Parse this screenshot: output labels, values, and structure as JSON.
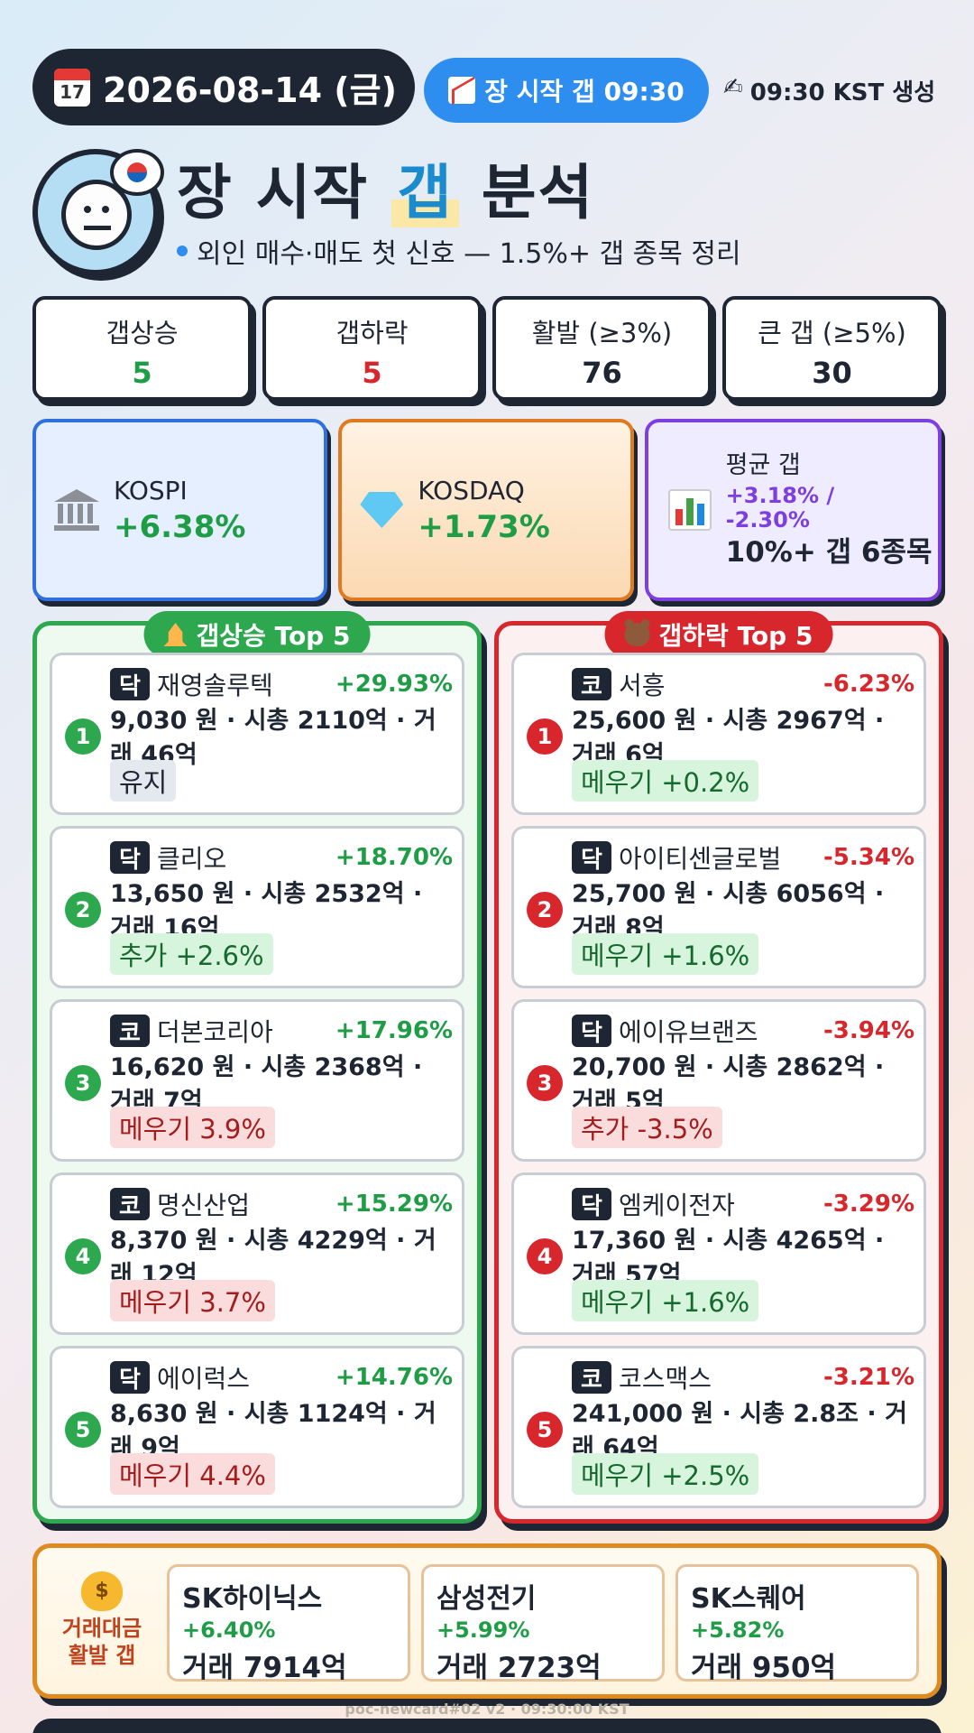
{
  "header": {
    "date": "2026-08-14 (금)",
    "calendar_icon_text": "17",
    "gap_pill": "장 시작 갭 09:30",
    "generated": "09:30 KST 생성"
  },
  "title": {
    "pre": "장 시작 ",
    "highlight": "갭",
    "post": " 분석",
    "subtitle": "외인 매수·매도 첫 신호 — 1.5%+ 갭 종목 정리"
  },
  "stats": [
    {
      "label": "갭상승",
      "value": "5",
      "color": "#1f9d46"
    },
    {
      "label": "갭하락",
      "value": "5",
      "color": "#d8262d"
    },
    {
      "label": "활발 (≥3%)",
      "value": "76",
      "color": "#1e2533"
    },
    {
      "label": "큰 갭 (≥5%)",
      "value": "30",
      "color": "#1e2533"
    }
  ],
  "indices": {
    "kospi": {
      "name": "KOSPI",
      "change": "+6.38%"
    },
    "kosdaq": {
      "name": "KOSDAQ",
      "change": "+1.73%"
    },
    "avg": {
      "name": "평균 갭",
      "change": "+3.18% / -2.30%",
      "note": "10%+ 갭 6종목"
    }
  },
  "gap_up": {
    "title": "갭상승 Top 5",
    "items": [
      {
        "rank": "1",
        "market": "닥",
        "name": "재영솔루텍",
        "change": "+29.93%",
        "info": "9,030 원 · 시총 2110억 · 거래 46억",
        "tag": "유지",
        "tag_type": "neutral"
      },
      {
        "rank": "2",
        "market": "닥",
        "name": "클리오",
        "change": "+18.70%",
        "info": "13,650 원 · 시총 2532억 · 거래 16억",
        "tag": "추가 +2.6%",
        "tag_type": "green"
      },
      {
        "rank": "3",
        "market": "코",
        "name": "더본코리아",
        "change": "+17.96%",
        "info": "16,620 원 · 시총 2368억 · 거래 7억",
        "tag": "메우기 3.9%",
        "tag_type": "red"
      },
      {
        "rank": "4",
        "market": "코",
        "name": "명신산업",
        "change": "+15.29%",
        "info": "8,370 원 · 시총 4229억 · 거래 12억",
        "tag": "메우기 3.7%",
        "tag_type": "red"
      },
      {
        "rank": "5",
        "market": "닥",
        "name": "에이럭스",
        "change": "+14.76%",
        "info": "8,630 원 · 시총 1124억 · 거래 9억",
        "tag": "메우기 4.4%",
        "tag_type": "red"
      }
    ]
  },
  "gap_down": {
    "title": "갭하락 Top 5",
    "items": [
      {
        "rank": "1",
        "market": "코",
        "name": "서흥",
        "change": "-6.23%",
        "info": "25,600 원 · 시총 2967억 · 거래 6억",
        "tag": "메우기 +0.2%",
        "tag_type": "green"
      },
      {
        "rank": "2",
        "market": "닥",
        "name": "아이티센글로벌",
        "change": "-5.34%",
        "info": "25,700 원 · 시총 6056억 · 거래 8억",
        "tag": "메우기 +1.6%",
        "tag_type": "green"
      },
      {
        "rank": "3",
        "market": "닥",
        "name": "에이유브랜즈",
        "change": "-3.94%",
        "info": "20,700 원 · 시총 2862억 · 거래 5억",
        "tag": "추가 -3.5%",
        "tag_type": "red"
      },
      {
        "rank": "4",
        "market": "닥",
        "name": "엠케이전자",
        "change": "-3.29%",
        "info": "17,360 원 · 시총 4265억 · 거래 57억",
        "tag": "메우기 +1.6%",
        "tag_type": "green"
      },
      {
        "rank": "5",
        "market": "코",
        "name": "코스맥스",
        "change": "-3.21%",
        "info": "241,000 원 · 시총 2.8조 · 거래 64억",
        "tag": "메우기 +2.5%",
        "tag_type": "green"
      }
    ]
  },
  "turnover": {
    "label_line1": "거래대금",
    "label_line2": "활발 갭",
    "items": [
      {
        "name": "SK하이닉스",
        "change": "+6.40%",
        "volume": "거래 7914억"
      },
      {
        "name": "삼성전기",
        "change": "+5.99%",
        "volume": "거래 2723억"
      },
      {
        "name": "SK스퀘어",
        "change": "+5.82%",
        "volume": "거래 950억"
      }
    ]
  },
  "footer": "poc-newcard#02 v2 · 09:30:00 KST"
}
